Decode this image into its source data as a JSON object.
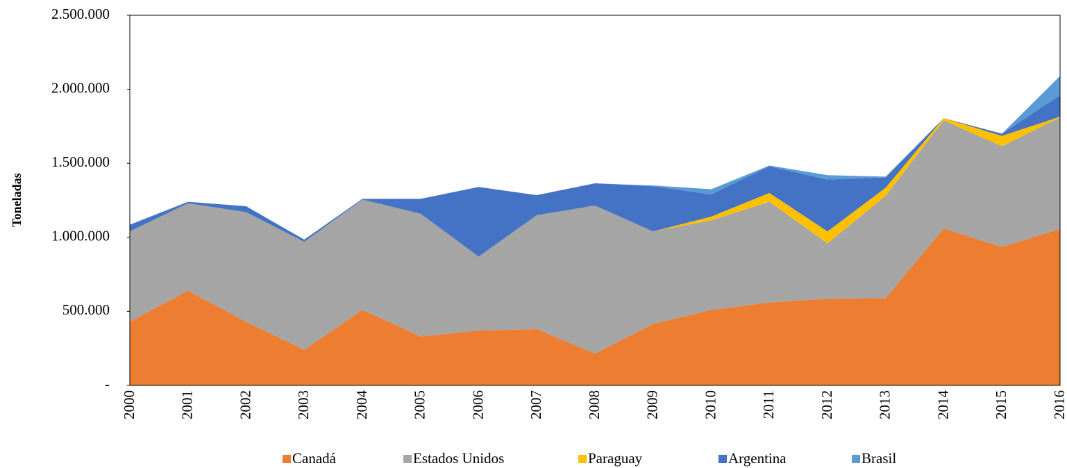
{
  "chart_data": {
    "type": "stacked_area",
    "y_label": "Toneladas",
    "categories": [
      "2000",
      "2001",
      "2002",
      "2003",
      "2004",
      "2005",
      "2006",
      "2007",
      "2008",
      "2009",
      "2010",
      "2011",
      "2012",
      "2013",
      "2014",
      "2015",
      "2016"
    ],
    "series": [
      {
        "name": "Canadá",
        "color": "#ED7D31",
        "values": [
          430000,
          640000,
          430000,
          240000,
          510000,
          330000,
          370000,
          380000,
          215000,
          415000,
          510000,
          560000,
          585000,
          590000,
          1060000,
          935000,
          1055000
        ]
      },
      {
        "name": "Estados Unidos",
        "color": "#A5A5A5",
        "values": [
          610000,
          590000,
          740000,
          730000,
          745000,
          830000,
          500000,
          770000,
          1000000,
          625000,
          605000,
          680000,
          375000,
          690000,
          730000,
          680000,
          755000
        ]
      },
      {
        "name": "Paraguay",
        "color": "#FFC000",
        "values": [
          0,
          0,
          0,
          0,
          0,
          0,
          0,
          0,
          0,
          0,
          25000,
          60000,
          80000,
          55000,
          15000,
          70000,
          5000
        ]
      },
      {
        "name": "Argentina",
        "color": "#4472C4",
        "values": [
          45000,
          10000,
          40000,
          15000,
          5000,
          100000,
          470000,
          135000,
          150000,
          305000,
          150000,
          180000,
          350000,
          70000,
          0,
          15000,
          145000
        ]
      },
      {
        "name": "Brasil",
        "color": "#5B9BD5",
        "values": [
          0,
          0,
          0,
          0,
          0,
          0,
          0,
          0,
          0,
          5000,
          35000,
          5000,
          30000,
          5000,
          0,
          0,
          130000
        ]
      }
    ],
    "ylim": [
      0,
      2500000
    ],
    "yticks": [
      {
        "value": 0,
        "label": "-"
      },
      {
        "value": 500000,
        "label": "500.000"
      },
      {
        "value": 1000000,
        "label": "1.000.000"
      },
      {
        "value": 1500000,
        "label": "1.500.000"
      },
      {
        "value": 2000000,
        "label": "2.000.000"
      },
      {
        "value": 2500000,
        "label": "2.500.000"
      }
    ],
    "grid": false,
    "legend": "bottom"
  }
}
